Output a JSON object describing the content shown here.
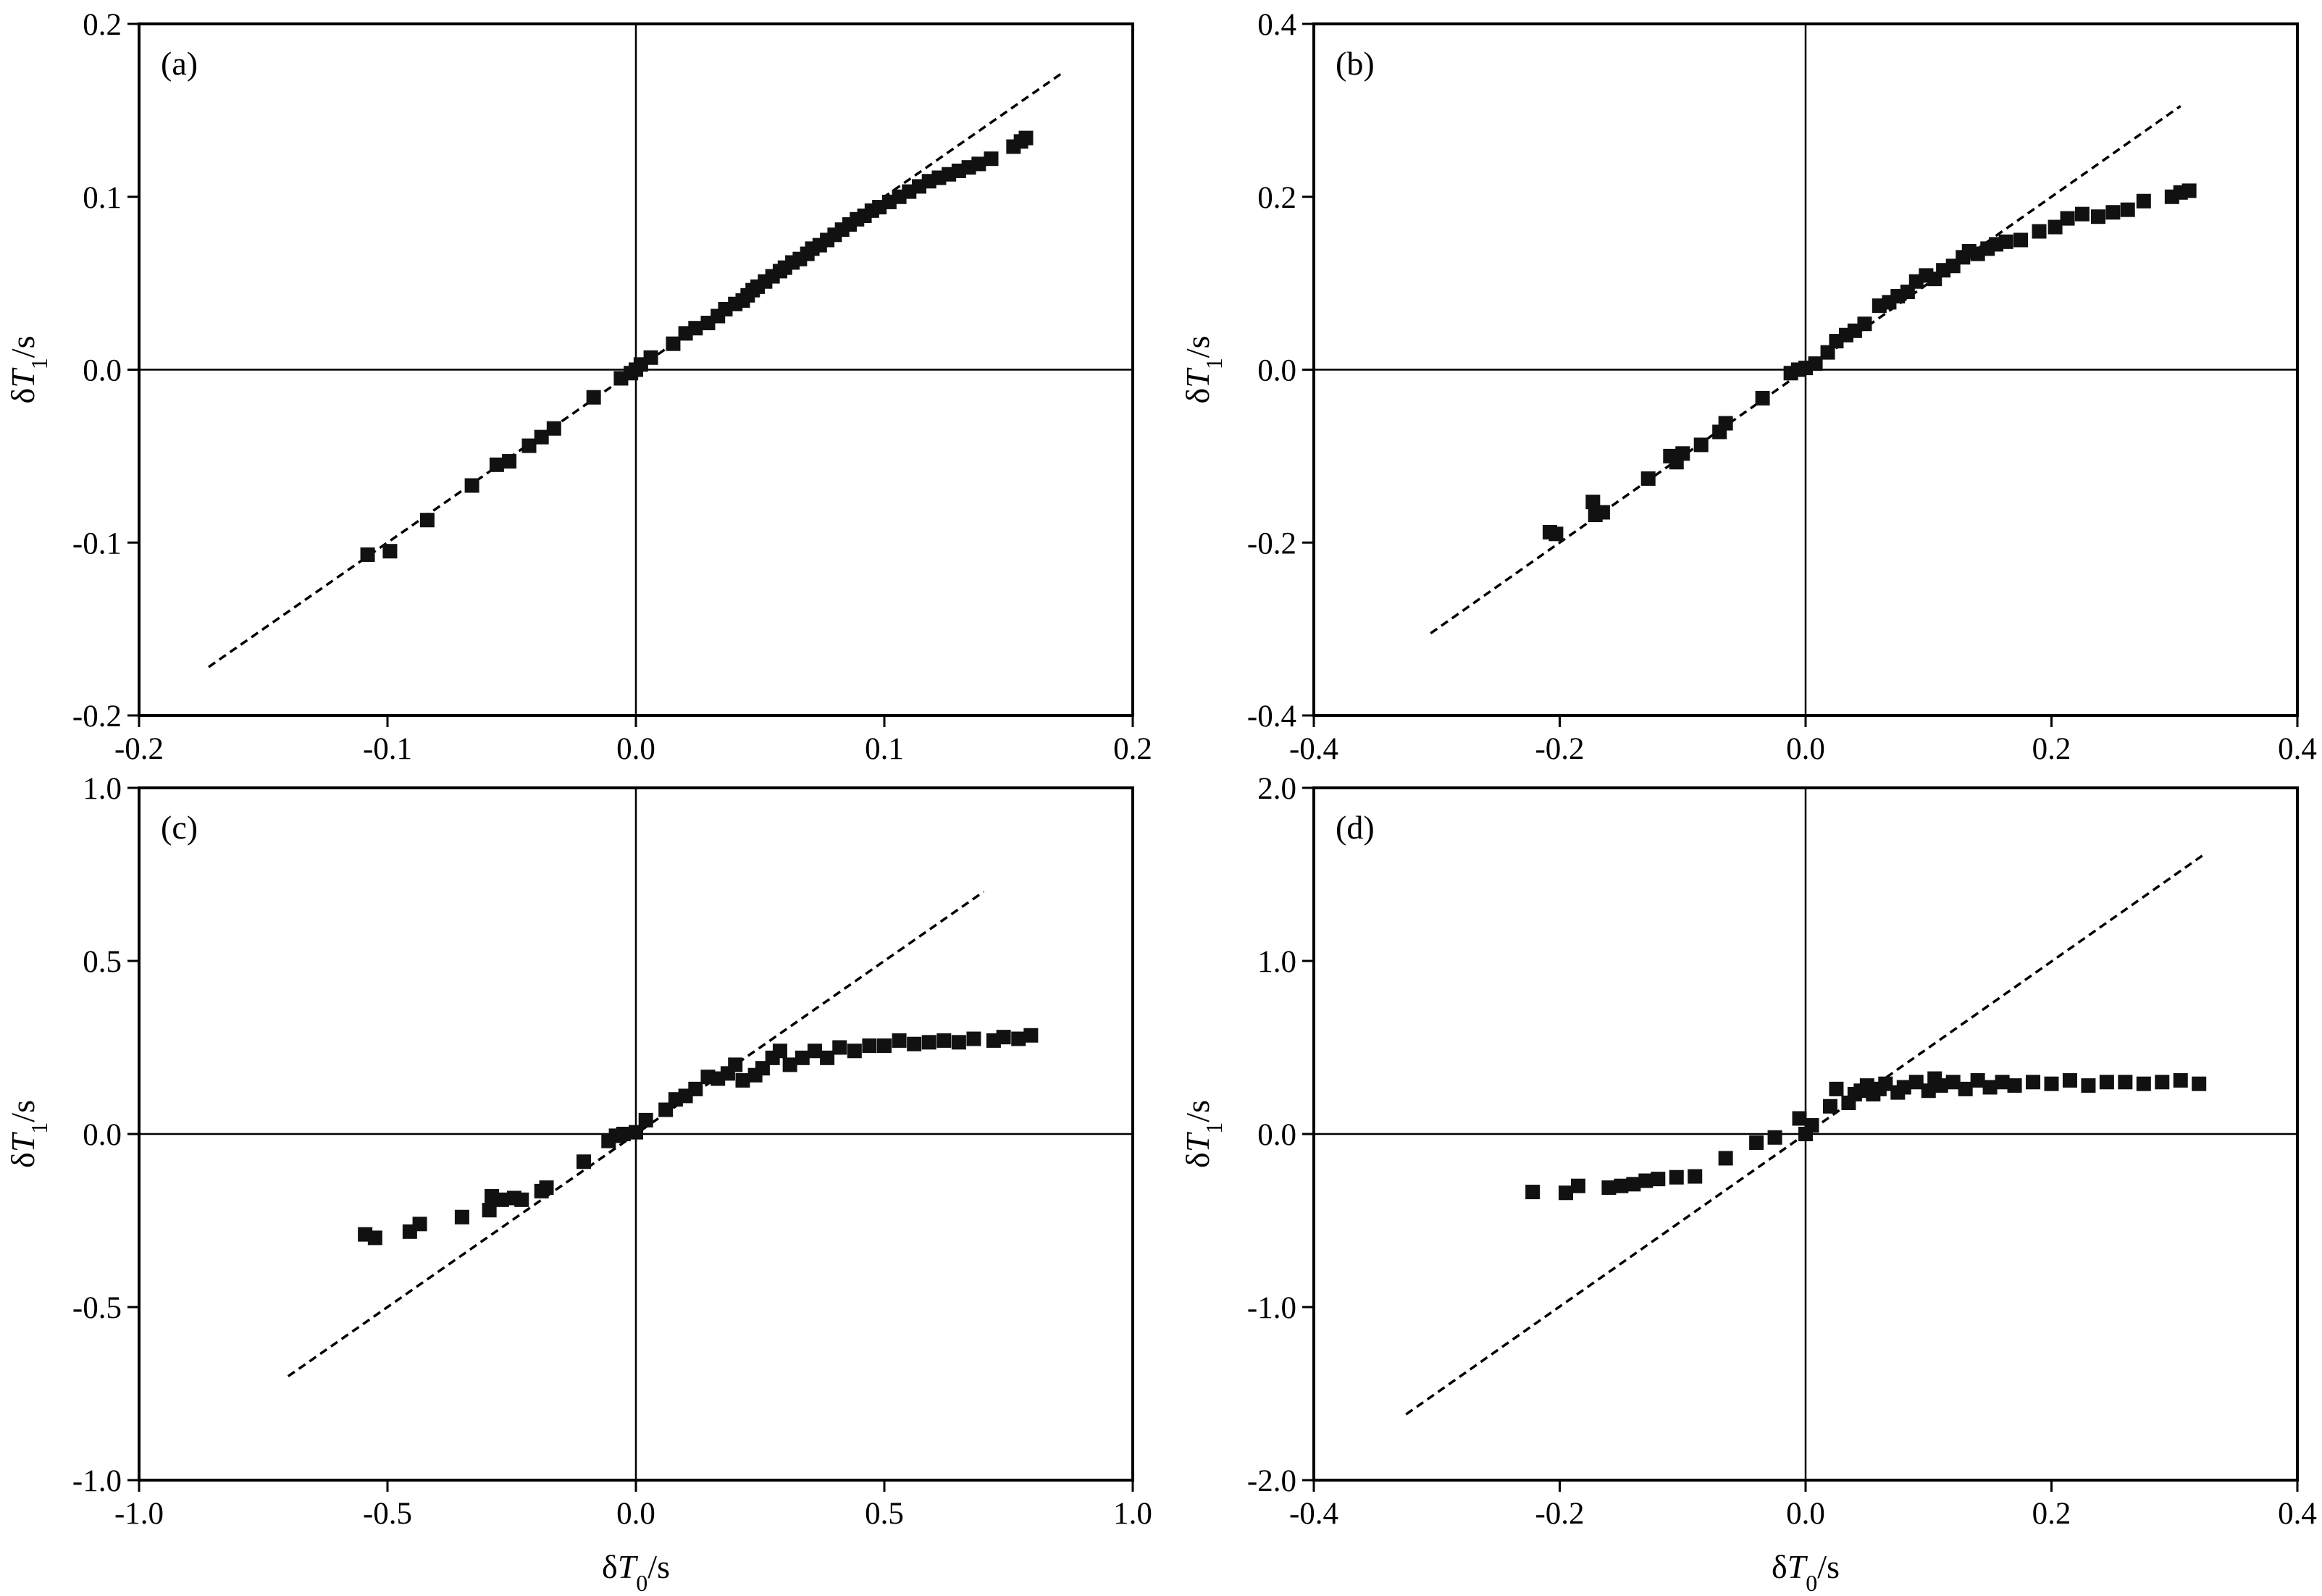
{
  "chart_data": [
    {
      "type": "scatter",
      "panel_label": "(a)",
      "xlim": [
        -0.2,
        0.2
      ],
      "ylim": [
        -0.2,
        0.2
      ],
      "xticks": [
        "-0.2",
        "-0.1",
        "0.0",
        "0.1",
        "0.2"
      ],
      "yticks": [
        "-0.2",
        "-0.1",
        "0.0",
        "0.1",
        "0.2"
      ],
      "xlabel_main": "",
      "xlabel_sub": "",
      "xlabel_unit": "",
      "ylabel_main": "δT",
      "ylabel_sub": "1",
      "ylabel_unit": "/s",
      "reference_line": {
        "x": [
          -0.172,
          0.172
        ],
        "y": [
          -0.172,
          0.172
        ]
      },
      "grid": false,
      "points": [
        [
          -0.108,
          -0.107
        ],
        [
          -0.099,
          -0.105
        ],
        [
          -0.084,
          -0.087
        ],
        [
          -0.066,
          -0.067
        ],
        [
          -0.056,
          -0.055
        ],
        [
          -0.051,
          -0.053
        ],
        [
          -0.043,
          -0.044
        ],
        [
          -0.038,
          -0.039
        ],
        [
          -0.033,
          -0.034
        ],
        [
          -0.017,
          -0.016
        ],
        [
          -0.006,
          -0.005
        ],
        [
          -0.002,
          -0.002
        ],
        [
          0.0,
          0.0
        ],
        [
          0.002,
          0.003
        ],
        [
          0.006,
          0.007
        ],
        [
          0.015,
          0.015
        ],
        [
          0.02,
          0.021
        ],
        [
          0.024,
          0.024
        ],
        [
          0.029,
          0.027
        ],
        [
          0.033,
          0.031
        ],
        [
          0.036,
          0.035
        ],
        [
          0.04,
          0.038
        ],
        [
          0.043,
          0.04
        ],
        [
          0.045,
          0.043
        ],
        [
          0.047,
          0.046
        ],
        [
          0.049,
          0.048
        ],
        [
          0.052,
          0.051
        ],
        [
          0.055,
          0.054
        ],
        [
          0.058,
          0.057
        ],
        [
          0.06,
          0.059
        ],
        [
          0.063,
          0.062
        ],
        [
          0.066,
          0.064
        ],
        [
          0.069,
          0.067
        ],
        [
          0.071,
          0.07
        ],
        [
          0.074,
          0.072
        ],
        [
          0.077,
          0.075
        ],
        [
          0.08,
          0.078
        ],
        [
          0.083,
          0.081
        ],
        [
          0.086,
          0.084
        ],
        [
          0.089,
          0.087
        ],
        [
          0.092,
          0.089
        ],
        [
          0.095,
          0.092
        ],
        [
          0.098,
          0.094
        ],
        [
          0.102,
          0.097
        ],
        [
          0.106,
          0.1
        ],
        [
          0.11,
          0.103
        ],
        [
          0.114,
          0.106
        ],
        [
          0.118,
          0.109
        ],
        [
          0.122,
          0.111
        ],
        [
          0.126,
          0.113
        ],
        [
          0.13,
          0.115
        ],
        [
          0.134,
          0.117
        ],
        [
          0.138,
          0.119
        ],
        [
          0.143,
          0.122
        ],
        [
          0.152,
          0.129
        ],
        [
          0.155,
          0.132
        ],
        [
          0.157,
          0.134
        ]
      ]
    },
    {
      "type": "scatter",
      "panel_label": "(b)",
      "xlim": [
        -0.4,
        0.4
      ],
      "ylim": [
        -0.4,
        0.4
      ],
      "xticks": [
        "-0.4",
        "-0.2",
        "0.0",
        "0.2",
        "0.4"
      ],
      "yticks": [
        "-0.4",
        "-0.2",
        "0.0",
        "0.2",
        "0.4"
      ],
      "xlabel_main": "",
      "xlabel_sub": "",
      "xlabel_unit": "",
      "ylabel_main": "δT",
      "ylabel_sub": "1",
      "ylabel_unit": "/s",
      "reference_line": {
        "x": [
          -0.305,
          0.305
        ],
        "y": [
          -0.305,
          0.305
        ]
      },
      "grid": false,
      "points": [
        [
          -0.208,
          -0.188
        ],
        [
          -0.203,
          -0.19
        ],
        [
          -0.173,
          -0.153
        ],
        [
          -0.171,
          -0.168
        ],
        [
          -0.165,
          -0.165
        ],
        [
          -0.128,
          -0.126
        ],
        [
          -0.11,
          -0.1
        ],
        [
          -0.105,
          -0.107
        ],
        [
          -0.1,
          -0.097
        ],
        [
          -0.085,
          -0.087
        ],
        [
          -0.07,
          -0.072
        ],
        [
          -0.065,
          -0.062
        ],
        [
          -0.035,
          -0.033
        ],
        [
          -0.012,
          -0.004
        ],
        [
          -0.006,
          0.0
        ],
        [
          0.0,
          0.002
        ],
        [
          0.008,
          0.007
        ],
        [
          0.018,
          0.02
        ],
        [
          0.025,
          0.033
        ],
        [
          0.033,
          0.04
        ],
        [
          0.04,
          0.045
        ],
        [
          0.048,
          0.053
        ],
        [
          0.06,
          0.074
        ],
        [
          0.068,
          0.078
        ],
        [
          0.075,
          0.085
        ],
        [
          0.083,
          0.09
        ],
        [
          0.09,
          0.102
        ],
        [
          0.098,
          0.109
        ],
        [
          0.105,
          0.105
        ],
        [
          0.112,
          0.115
        ],
        [
          0.12,
          0.12
        ],
        [
          0.128,
          0.13
        ],
        [
          0.133,
          0.137
        ],
        [
          0.14,
          0.134
        ],
        [
          0.148,
          0.14
        ],
        [
          0.155,
          0.145
        ],
        [
          0.163,
          0.148
        ],
        [
          0.175,
          0.15
        ],
        [
          0.19,
          0.16
        ],
        [
          0.203,
          0.165
        ],
        [
          0.213,
          0.175
        ],
        [
          0.225,
          0.18
        ],
        [
          0.238,
          0.177
        ],
        [
          0.25,
          0.182
        ],
        [
          0.262,
          0.185
        ],
        [
          0.275,
          0.195
        ],
        [
          0.298,
          0.2
        ],
        [
          0.305,
          0.205
        ],
        [
          0.312,
          0.207
        ]
      ]
    },
    {
      "type": "scatter",
      "panel_label": "(c)",
      "xlim": [
        -1.0,
        1.0
      ],
      "ylim": [
        -1.0,
        1.0
      ],
      "xticks": [
        "-1.0",
        "-0.5",
        "0.0",
        "0.5",
        "1.0"
      ],
      "yticks": [
        "-1.0",
        "-0.5",
        "0.0",
        "0.5",
        "1.0"
      ],
      "xlabel_main": "δT",
      "xlabel_sub": "0",
      "xlabel_unit": "/s",
      "ylabel_main": "δT",
      "ylabel_sub": "1",
      "ylabel_unit": "/s",
      "reference_line": {
        "x": [
          -0.7,
          0.7
        ],
        "y": [
          -0.7,
          0.7
        ]
      },
      "grid": false,
      "points": [
        [
          -0.545,
          -0.29
        ],
        [
          -0.525,
          -0.3
        ],
        [
          -0.455,
          -0.282
        ],
        [
          -0.435,
          -0.26
        ],
        [
          -0.35,
          -0.24
        ],
        [
          -0.295,
          -0.22
        ],
        [
          -0.29,
          -0.18
        ],
        [
          -0.27,
          -0.19
        ],
        [
          -0.245,
          -0.185
        ],
        [
          -0.23,
          -0.19
        ],
        [
          -0.19,
          -0.165
        ],
        [
          -0.18,
          -0.155
        ],
        [
          -0.105,
          -0.08
        ],
        [
          -0.055,
          -0.02
        ],
        [
          -0.04,
          -0.005
        ],
        [
          -0.025,
          0.0
        ],
        [
          0.0,
          0.005
        ],
        [
          0.02,
          0.04
        ],
        [
          0.06,
          0.07
        ],
        [
          0.08,
          0.1
        ],
        [
          0.1,
          0.11
        ],
        [
          0.12,
          0.13
        ],
        [
          0.145,
          0.165
        ],
        [
          0.165,
          0.16
        ],
        [
          0.185,
          0.175
        ],
        [
          0.2,
          0.2
        ],
        [
          0.215,
          0.155
        ],
        [
          0.24,
          0.17
        ],
        [
          0.255,
          0.19
        ],
        [
          0.275,
          0.22
        ],
        [
          0.29,
          0.24
        ],
        [
          0.31,
          0.2
        ],
        [
          0.335,
          0.22
        ],
        [
          0.36,
          0.24
        ],
        [
          0.385,
          0.22
        ],
        [
          0.41,
          0.25
        ],
        [
          0.44,
          0.24
        ],
        [
          0.47,
          0.255
        ],
        [
          0.5,
          0.255
        ],
        [
          0.53,
          0.27
        ],
        [
          0.56,
          0.26
        ],
        [
          0.59,
          0.265
        ],
        [
          0.62,
          0.27
        ],
        [
          0.65,
          0.265
        ],
        [
          0.68,
          0.275
        ],
        [
          0.72,
          0.27
        ],
        [
          0.74,
          0.28
        ],
        [
          0.77,
          0.275
        ],
        [
          0.795,
          0.285
        ]
      ]
    },
    {
      "type": "scatter",
      "panel_label": "(d)",
      "xlim": [
        -0.4,
        0.4
      ],
      "ylim": [
        -2.0,
        2.0
      ],
      "xticks": [
        "-0.4",
        "-0.2",
        "0.0",
        "0.2",
        "0.4"
      ],
      "yticks": [
        "-2.0",
        "-1.0",
        "0.0",
        "1.0",
        "2.0"
      ],
      "xlabel_main": "δT",
      "xlabel_sub": "0",
      "xlabel_unit": "/s",
      "ylabel_main": "δT",
      "ylabel_sub": "1",
      "ylabel_unit": "/s",
      "reference_line": {
        "x": [
          -0.325,
          0.325
        ],
        "y": [
          -1.62,
          1.62
        ]
      },
      "grid": false,
      "points": [
        [
          -0.222,
          -0.335
        ],
        [
          -0.195,
          -0.34
        ],
        [
          -0.185,
          -0.3
        ],
        [
          -0.16,
          -0.31
        ],
        [
          -0.15,
          -0.3
        ],
        [
          -0.14,
          -0.29
        ],
        [
          -0.13,
          -0.27
        ],
        [
          -0.12,
          -0.26
        ],
        [
          -0.105,
          -0.25
        ],
        [
          -0.09,
          -0.245
        ],
        [
          -0.065,
          -0.14
        ],
        [
          -0.04,
          -0.05
        ],
        [
          -0.025,
          -0.02
        ],
        [
          -0.005,
          0.09
        ],
        [
          0.0,
          0.0
        ],
        [
          0.005,
          0.05
        ],
        [
          0.02,
          0.16
        ],
        [
          0.025,
          0.26
        ],
        [
          0.035,
          0.18
        ],
        [
          0.04,
          0.23
        ],
        [
          0.045,
          0.25
        ],
        [
          0.05,
          0.28
        ],
        [
          0.055,
          0.23
        ],
        [
          0.06,
          0.26
        ],
        [
          0.065,
          0.29
        ],
        [
          0.075,
          0.24
        ],
        [
          0.08,
          0.27
        ],
        [
          0.09,
          0.3
        ],
        [
          0.1,
          0.25
        ],
        [
          0.105,
          0.32
        ],
        [
          0.11,
          0.28
        ],
        [
          0.12,
          0.3
        ],
        [
          0.13,
          0.26
        ],
        [
          0.14,
          0.31
        ],
        [
          0.15,
          0.27
        ],
        [
          0.16,
          0.3
        ],
        [
          0.17,
          0.28
        ],
        [
          0.185,
          0.3
        ],
        [
          0.2,
          0.29
        ],
        [
          0.215,
          0.31
        ],
        [
          0.23,
          0.28
        ],
        [
          0.245,
          0.3
        ],
        [
          0.26,
          0.3
        ],
        [
          0.275,
          0.29
        ],
        [
          0.29,
          0.3
        ],
        [
          0.305,
          0.31
        ],
        [
          0.32,
          0.29
        ]
      ]
    }
  ]
}
